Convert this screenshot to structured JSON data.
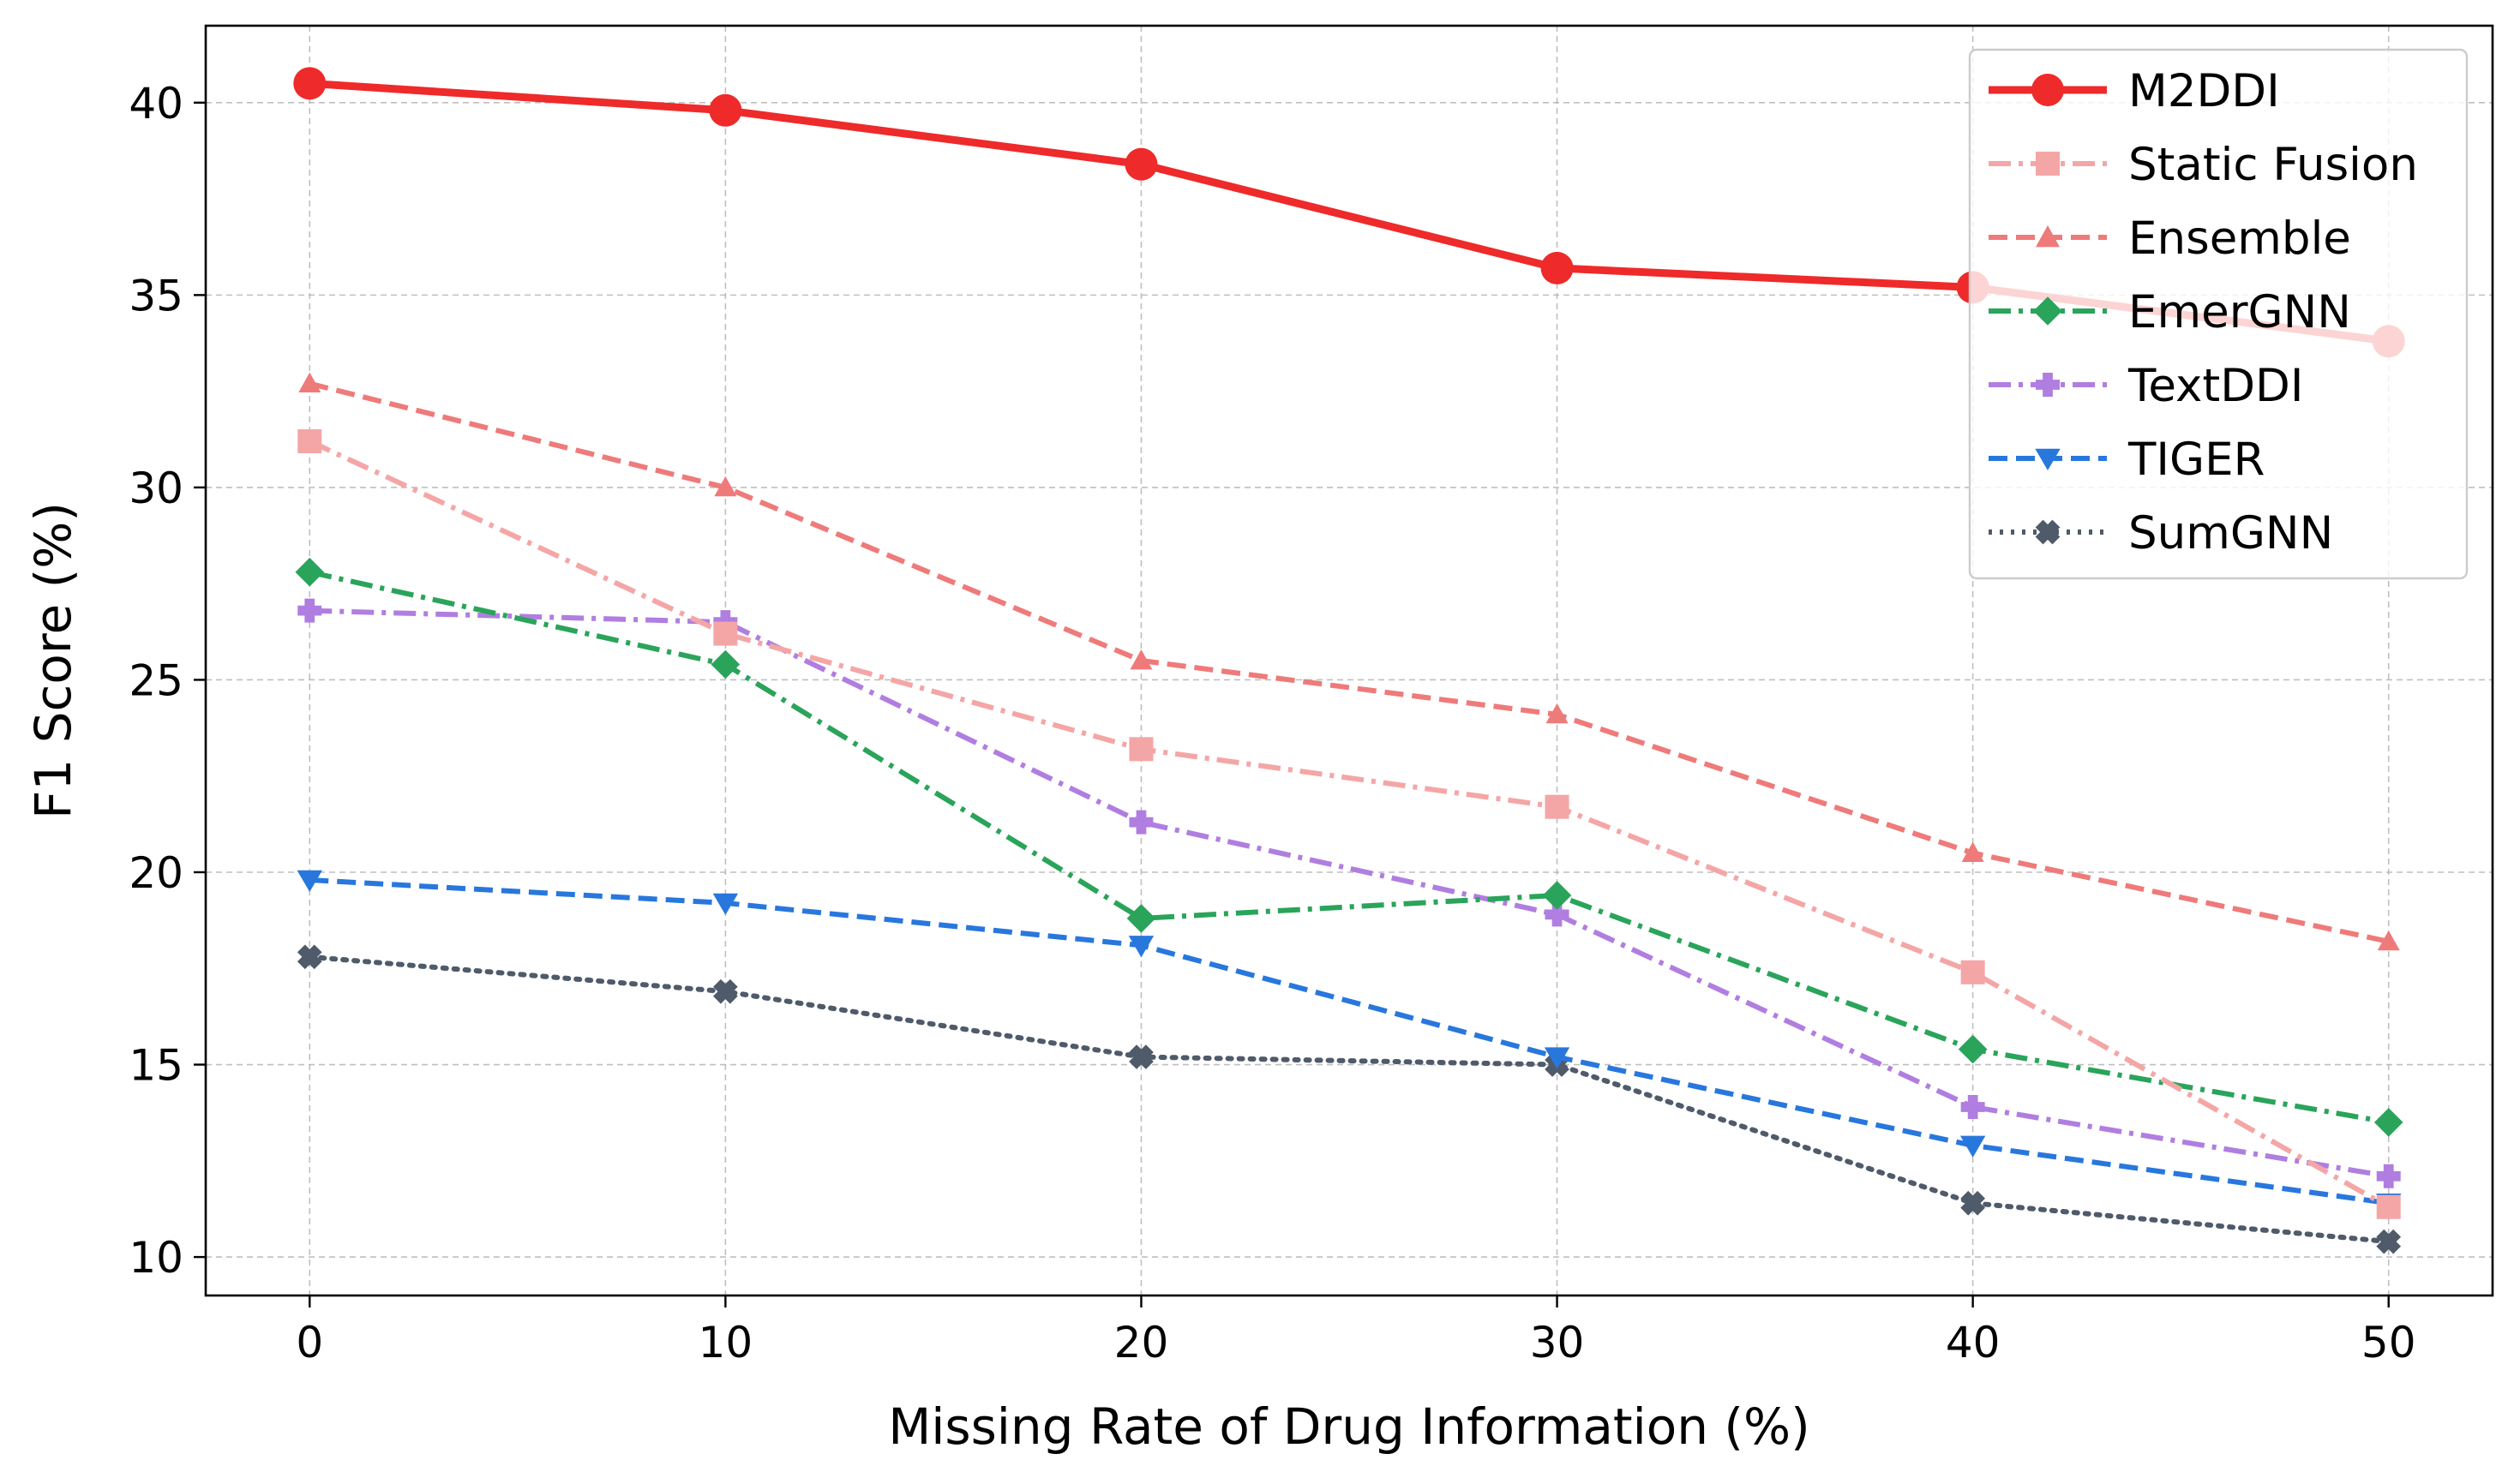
{
  "chart_data": {
    "type": "line",
    "title": "",
    "xlabel": "Missing Rate of Drug Information (%)",
    "ylabel": "F1 Score (%)",
    "x": [
      0,
      10,
      20,
      30,
      40,
      50
    ],
    "xticks": [
      "0",
      "10",
      "20",
      "30",
      "40",
      "50"
    ],
    "yticks": [
      "10",
      "15",
      "20",
      "25",
      "30",
      "35",
      "40"
    ],
    "xlim": [
      -2.5,
      52.5
    ],
    "ylim": [
      9.0,
      42.0
    ],
    "grid": true,
    "legend_position": "top-right",
    "series": [
      {
        "name": "M2DDI",
        "color": "#ee2a2a",
        "marker": "circle",
        "dash": "solid",
        "values": [
          40.5,
          39.8,
          38.4,
          35.7,
          35.2,
          33.8
        ]
      },
      {
        "name": "Static Fusion",
        "color": "#f4a6a6",
        "marker": "square",
        "dash": "dashdot",
        "values": [
          31.2,
          26.2,
          23.2,
          21.7,
          17.4,
          11.3
        ]
      },
      {
        "name": "Ensemble",
        "color": "#ef7a7a",
        "marker": "triangle-up",
        "dash": "dashed",
        "values": [
          32.7,
          30.0,
          25.5,
          24.1,
          20.5,
          18.2
        ]
      },
      {
        "name": "EmerGNN",
        "color": "#2aa45a",
        "marker": "diamond",
        "dash": "dashdot",
        "values": [
          27.8,
          25.4,
          18.8,
          19.4,
          15.4,
          13.5
        ]
      },
      {
        "name": "TextDDI",
        "color": "#b07ee0",
        "marker": "plus",
        "dash": "dashdot",
        "values": [
          26.8,
          26.5,
          21.3,
          18.9,
          13.9,
          12.1
        ]
      },
      {
        "name": "TIGER",
        "color": "#2877dd",
        "marker": "triangle-down",
        "dash": "dashed",
        "values": [
          19.8,
          19.2,
          18.1,
          15.2,
          12.9,
          11.4
        ]
      },
      {
        "name": "SumGNN",
        "color": "#4f5a6a",
        "marker": "x",
        "dash": "dotted",
        "values": [
          17.8,
          16.9,
          15.2,
          15.0,
          11.4,
          10.4
        ]
      }
    ]
  }
}
